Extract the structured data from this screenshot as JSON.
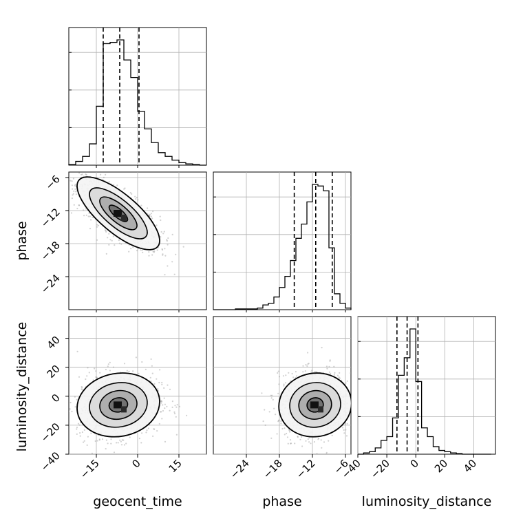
{
  "chart_data": {
    "type": "corner",
    "parameters": [
      "geocent_time",
      "phase",
      "luminosity_distance"
    ],
    "ranges": {
      "geocent_time": [
        -25,
        25
      ],
      "phase": [
        -30,
        -5
      ],
      "luminosity_distance": [
        -40,
        55
      ]
    },
    "ticks": {
      "geocent_time": [
        -15,
        0,
        15
      ],
      "phase": [
        -24,
        -18,
        -12,
        -6
      ],
      "luminosity_distance": [
        -40,
        -20,
        0,
        20,
        40
      ]
    },
    "tick_labels": {
      "geocent_time": [
        "−15",
        "0",
        "15"
      ],
      "phase": [
        "−24",
        "−18",
        "−12",
        "−6"
      ],
      "luminosity_distance": [
        "−40",
        "−20",
        "0",
        "20",
        "40"
      ]
    },
    "axis_labels": {
      "geocent_time": "geocent_time",
      "phase": "phase",
      "luminosity_distance": "luminosity_distance"
    },
    "grid": true,
    "histograms": {
      "geocent_time": {
        "bin_edges": [
          -25,
          -22.5,
          -20,
          -17.5,
          -15,
          -12.5,
          -10,
          -7.5,
          -5,
          -2.5,
          0,
          2.5,
          5,
          7.5,
          10,
          12.5,
          15,
          17.5,
          20,
          22.5,
          25
        ],
        "counts": [
          0.5,
          3,
          7,
          17,
          47,
          97,
          98,
          100,
          84,
          70,
          43,
          29,
          18,
          10,
          7,
          4,
          2,
          1,
          0.5,
          0
        ],
        "quantiles": [
          -12.5,
          -6.5,
          0.5
        ]
      },
      "phase": {
        "bin_edges": [
          -30,
          -29,
          -28,
          -27,
          -26,
          -25,
          -24,
          -23,
          -22,
          -21,
          -20,
          -19,
          -18,
          -17,
          -16,
          -15,
          -14,
          -13,
          -12,
          -11,
          -10,
          -9,
          -8,
          -7,
          -6,
          -5
        ],
        "counts": [
          0,
          0,
          0,
          0,
          0.5,
          0.5,
          0.5,
          0.5,
          1,
          3,
          4,
          8,
          14,
          21,
          31,
          45,
          54,
          68,
          79,
          78,
          75,
          39,
          10,
          4,
          1
        ],
        "quantiles": [
          -15.3,
          -11.4,
          -8.4
        ]
      },
      "luminosity_distance": {
        "bin_edges": [
          -40,
          -36,
          -32,
          -28,
          -24,
          -20,
          -16,
          -12,
          -8,
          -4,
          0,
          4,
          8,
          12,
          16,
          20,
          24,
          28,
          32,
          36,
          40,
          44,
          48,
          52
        ],
        "counts": [
          0,
          1,
          2,
          5,
          11,
          14,
          29,
          63,
          77,
          100,
          58,
          21,
          14,
          6,
          3,
          2,
          1,
          0.5,
          0,
          0,
          0,
          0,
          0
        ],
        "quantiles": [
          -13,
          -6,
          1.5
        ]
      }
    },
    "joint": [
      {
        "x": "geocent_time",
        "y": "phase",
        "mean": [
          -7,
          -12.5
        ],
        "sd": [
          7.5,
          3.3
        ],
        "corr": -0.75,
        "levels": [
          0.4,
          1.2,
          2.2,
          3.5
        ]
      },
      {
        "x": "geocent_time",
        "y": "luminosity_distance",
        "mean": [
          -7,
          -6
        ],
        "sd": [
          7.5,
          11
        ],
        "corr": 0.1,
        "levels": [
          0.4,
          1.2,
          2.2,
          3.5
        ]
      },
      {
        "x": "phase",
        "y": "luminosity_distance",
        "mean": [
          -11.5,
          -6
        ],
        "sd": [
          3.3,
          11
        ],
        "corr": 0.05,
        "levels": [
          0.4,
          1.2,
          2.2,
          3.5
        ]
      }
    ],
    "colors": {
      "line": "#000000",
      "points": "#9a9a9a",
      "grid": "#b0b0b0"
    }
  }
}
